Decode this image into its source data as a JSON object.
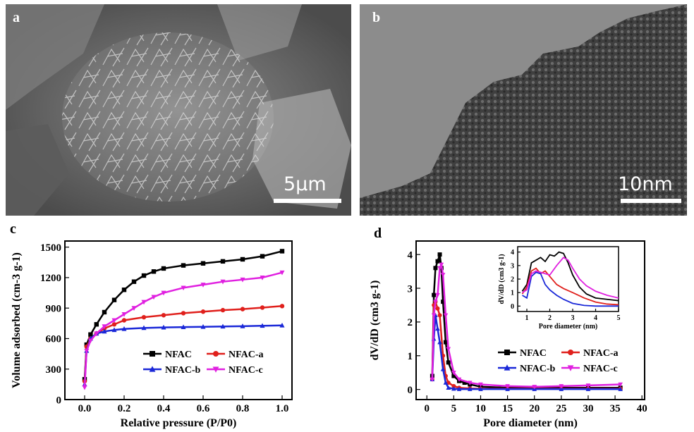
{
  "panels": {
    "a": {
      "label": "a",
      "scale_bar": "5μm"
    },
    "b": {
      "label": "b",
      "scale_bar": "10nm"
    },
    "c": {
      "label": "c"
    },
    "d": {
      "label": "d"
    }
  },
  "colors": {
    "NFAC": "#000000",
    "NFAC-a": "#e0201c",
    "NFAC-b": "#1a28d8",
    "NFAC-c": "#e020e0"
  },
  "chart_data": [
    {
      "id": "c",
      "type": "line",
      "xlabel": "Relative pressure (P/P0)",
      "ylabel": "Volume adsorbed (cm-3 g-1)",
      "xlim": [
        -0.1,
        1.05
      ],
      "ylim": [
        0,
        1560
      ],
      "xticks": [
        "0.0",
        "0.2",
        "0.4",
        "0.6",
        "0.8",
        "1.0"
      ],
      "xtick_values": [
        0.0,
        0.2,
        0.4,
        0.6,
        0.8,
        1.0
      ],
      "yticks": [
        "0",
        "300",
        "600",
        "900",
        "1200",
        "1500"
      ],
      "ytick_values": [
        0,
        300,
        600,
        900,
        1200,
        1500
      ],
      "legend": [
        "NFAC",
        "NFAC-a",
        "NFAC-b",
        "NFAC-c"
      ],
      "legend_position": "bottom-right",
      "series": [
        {
          "name": "NFAC",
          "x": [
            0.0,
            0.01,
            0.03,
            0.06,
            0.1,
            0.15,
            0.2,
            0.25,
            0.3,
            0.35,
            0.4,
            0.5,
            0.6,
            0.7,
            0.8,
            0.9,
            1.0
          ],
          "y": [
            200,
            540,
            640,
            740,
            860,
            980,
            1080,
            1160,
            1220,
            1260,
            1290,
            1320,
            1340,
            1360,
            1380,
            1410,
            1460
          ]
        },
        {
          "name": "NFAC-a",
          "x": [
            0.0,
            0.01,
            0.03,
            0.06,
            0.1,
            0.15,
            0.2,
            0.3,
            0.4,
            0.5,
            0.6,
            0.7,
            0.8,
            0.9,
            1.0
          ],
          "y": [
            180,
            520,
            600,
            650,
            700,
            740,
            780,
            810,
            830,
            850,
            865,
            880,
            890,
            905,
            920
          ]
        },
        {
          "name": "NFAC-b",
          "x": [
            0.0,
            0.01,
            0.03,
            0.06,
            0.1,
            0.15,
            0.2,
            0.3,
            0.4,
            0.5,
            0.6,
            0.7,
            0.8,
            0.9,
            1.0
          ],
          "y": [
            150,
            480,
            600,
            650,
            670,
            685,
            695,
            705,
            710,
            713,
            716,
            719,
            722,
            726,
            730
          ]
        },
        {
          "name": "NFAC-c",
          "x": [
            0.0,
            0.01,
            0.03,
            0.06,
            0.1,
            0.15,
            0.2,
            0.25,
            0.3,
            0.35,
            0.4,
            0.5,
            0.6,
            0.7,
            0.8,
            0.9,
            1.0
          ],
          "y": [
            120,
            480,
            580,
            650,
            720,
            780,
            840,
            900,
            960,
            1010,
            1050,
            1100,
            1130,
            1160,
            1180,
            1200,
            1250
          ]
        }
      ]
    },
    {
      "id": "d",
      "type": "line",
      "xlabel": "Pore diameter (nm)",
      "ylabel": "dV/dD (cm3 g-1)",
      "xlim": [
        -2,
        40.5
      ],
      "ylim": [
        -0.3,
        4.4
      ],
      "xticks": [
        "0",
        "5",
        "10",
        "15",
        "20",
        "25",
        "30",
        "35",
        "40"
      ],
      "xtick_values": [
        0,
        5,
        10,
        15,
        20,
        25,
        30,
        35,
        40
      ],
      "yticks": [
        "0",
        "1",
        "2",
        "3",
        "4"
      ],
      "ytick_values": [
        0,
        1,
        2,
        3,
        4
      ],
      "legend": [
        "NFAC",
        "NFAC-a",
        "NFAC-b",
        "NFAC-c"
      ],
      "legend_position": "bottom-right",
      "series": [
        {
          "name": "NFAC",
          "x": [
            1.0,
            1.3,
            1.6,
            2.0,
            2.4,
            2.7,
            3.0,
            3.5,
            4,
            5,
            6,
            7,
            8,
            10,
            15,
            20,
            25,
            30,
            36
          ],
          "y": [
            0.4,
            2.8,
            3.6,
            3.8,
            4.0,
            3.6,
            2.6,
            1.4,
            0.8,
            0.4,
            0.25,
            0.2,
            0.15,
            0.08,
            0.05,
            0.05,
            0.05,
            0.05,
            0.05
          ]
        },
        {
          "name": "NFAC-a",
          "x": [
            1.0,
            1.3,
            1.6,
            2.0,
            2.4,
            3.0,
            3.5,
            4,
            5,
            6,
            8,
            10,
            15,
            20,
            25,
            30,
            36
          ],
          "y": [
            0.3,
            2.5,
            2.6,
            2.4,
            2.2,
            1.0,
            0.4,
            0.2,
            0.1,
            0.05,
            0.03,
            0.02,
            0.02,
            0.02,
            0.02,
            0.02,
            0.02
          ]
        },
        {
          "name": "NFAC-b",
          "x": [
            1.0,
            1.3,
            1.6,
            2.0,
            2.4,
            3.0,
            3.5,
            4,
            5,
            6,
            8,
            10,
            15,
            20,
            25,
            30,
            36
          ],
          "y": [
            0.3,
            1.5,
            2.2,
            1.8,
            1.4,
            0.6,
            0.2,
            0.05,
            0.02,
            0.01,
            0.01,
            0.01,
            0.01,
            0.01,
            0.01,
            0.01,
            0.01
          ]
        },
        {
          "name": "NFAC-c",
          "x": [
            1.0,
            1.3,
            1.6,
            2.0,
            2.4,
            2.7,
            3.0,
            3.5,
            4,
            5,
            6,
            8,
            10,
            15,
            20,
            25,
            30,
            36
          ],
          "y": [
            0.3,
            2.2,
            2.6,
            2.8,
            3.6,
            3.7,
            3.4,
            2.2,
            1.2,
            0.5,
            0.3,
            0.2,
            0.15,
            0.1,
            0.08,
            0.1,
            0.12,
            0.15
          ]
        }
      ],
      "inset": {
        "xlabel": "Pore diameter (nm)",
        "ylabel": "dV/dD (cm3 g-1)",
        "xlim": [
          0.6,
          5
        ],
        "ylim": [
          -0.4,
          4.4
        ],
        "xticks": [
          "1",
          "2",
          "3",
          "4",
          "5"
        ],
        "xtick_values": [
          1,
          2,
          3,
          4,
          5
        ],
        "yticks": [
          "0",
          "1",
          "2",
          "3",
          "4"
        ],
        "ytick_values": [
          0,
          1,
          2,
          3,
          4
        ],
        "series": [
          {
            "name": "NFAC",
            "x": [
              0.8,
              1.0,
              1.2,
              1.4,
              1.6,
              1.8,
              2.0,
              2.2,
              2.4,
              2.6,
              2.8,
              3.0,
              3.3,
              3.6,
              4.0,
              4.5,
              5.0
            ],
            "y": [
              1.1,
              1.6,
              3.2,
              3.4,
              3.6,
              3.3,
              3.8,
              3.7,
              4.0,
              3.9,
              3.2,
              2.3,
              1.4,
              0.9,
              0.6,
              0.5,
              0.4
            ]
          },
          {
            "name": "NFAC-a",
            "x": [
              0.8,
              1.0,
              1.2,
              1.4,
              1.6,
              1.8,
              2.0,
              2.3,
              2.6,
              3.0,
              3.5,
              4.0,
              4.5,
              5.0
            ],
            "y": [
              0.9,
              1.4,
              2.6,
              2.8,
              2.4,
              2.6,
              2.2,
              1.6,
              1.3,
              1.0,
              0.6,
              0.3,
              0.15,
              0.1
            ]
          },
          {
            "name": "NFAC-b",
            "x": [
              0.8,
              1.0,
              1.2,
              1.4,
              1.6,
              1.8,
              2.0,
              2.3,
              2.6,
              3.0,
              3.5,
              4.0,
              4.5,
              5.0
            ],
            "y": [
              0.8,
              0.6,
              2.2,
              2.5,
              2.4,
              1.6,
              1.2,
              0.8,
              0.5,
              0.2,
              0.05,
              0.0,
              0.0,
              0.0
            ]
          },
          {
            "name": "NFAC-c",
            "x": [
              0.8,
              1.0,
              1.2,
              1.4,
              1.6,
              1.8,
              2.0,
              2.3,
              2.6,
              2.8,
              3.0,
              3.3,
              3.6,
              4.0,
              4.5,
              5.0
            ],
            "y": [
              1.0,
              1.2,
              2.4,
              2.6,
              2.5,
              2.4,
              2.3,
              3.0,
              3.6,
              3.4,
              2.8,
              2.0,
              1.5,
              1.1,
              0.8,
              0.6
            ]
          }
        ]
      }
    }
  ]
}
